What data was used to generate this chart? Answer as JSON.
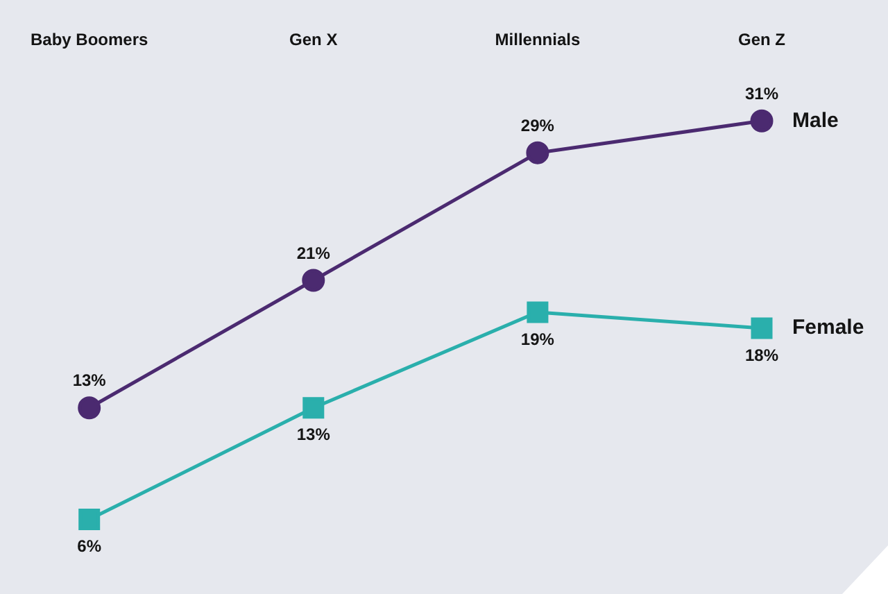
{
  "chart_data": {
    "type": "line",
    "categories": [
      "Baby Boomers",
      "Gen X",
      "Millennials",
      "Gen Z"
    ],
    "tick_labels": "x",
    "line_style": "solid",
    "series": [
      {
        "name": "Male",
        "color": "#4b2a70",
        "marker": "circle",
        "values": [
          13,
          21,
          29,
          31
        ],
        "value_labels": [
          "13%",
          "21%",
          "29%",
          "31%"
        ]
      },
      {
        "name": "Female",
        "color": "#2aafac",
        "marker": "square",
        "values": [
          6,
          13,
          19,
          18
        ],
        "value_labels": [
          "6%",
          "13%",
          "19%",
          "18%"
        ]
      }
    ]
  }
}
